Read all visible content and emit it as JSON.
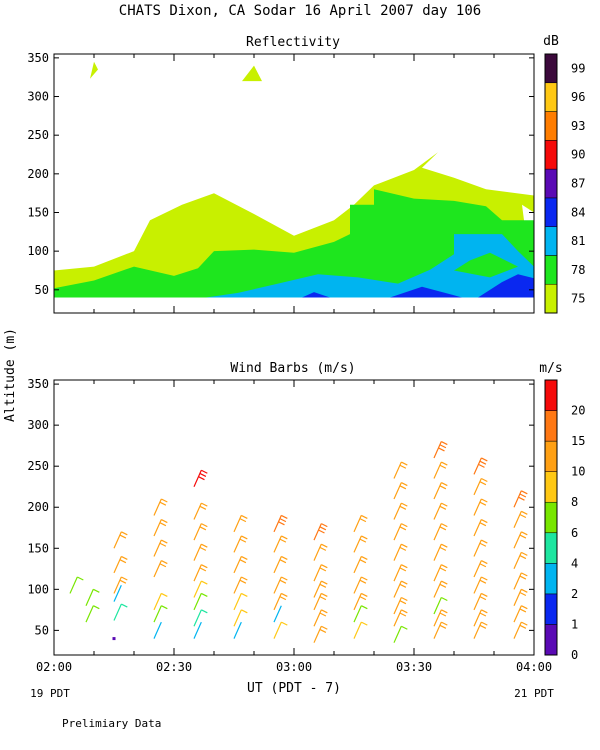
{
  "title": "CHATS Dixon, CA  Sodar  16 April 2007  day 106",
  "footer_note": "Prelimiary Data",
  "y_axis_label": "Altitude (m)",
  "x_axis_label": "UT  (PDT - 7)",
  "x_left_sub": "19 PDT",
  "x_right_sub": "21 PDT",
  "chart_data": [
    {
      "type": "heatmap",
      "title": "Reflectivity",
      "unit": "dB",
      "xlim": [
        0,
        120
      ],
      "ylim": [
        20,
        355
      ],
      "x_ticks": [
        {
          "value": 0,
          "label": "02:00"
        },
        {
          "value": 30,
          "label": "02:30"
        },
        {
          "value": 60,
          "label": "03:00"
        },
        {
          "value": 90,
          "label": "03:30"
        },
        {
          "value": 120,
          "label": "04:00"
        }
      ],
      "y_ticks": [
        50,
        100,
        150,
        200,
        250,
        300,
        350
      ],
      "colorbar": [
        {
          "label": "75",
          "color": "#c8f000"
        },
        {
          "label": "78",
          "color": "#1ee61e"
        },
        {
          "label": "81",
          "color": "#00b4f0"
        },
        {
          "label": "84",
          "color": "#0a28f0"
        },
        {
          "label": "87",
          "color": "#5a0ab4"
        },
        {
          "label": "90",
          "color": "#f50a0a"
        },
        {
          "label": "93",
          "color": "#ff7d00"
        },
        {
          "label": "96",
          "color": "#ffc814"
        },
        {
          "label": "99",
          "color": "#3c0a3c"
        }
      ],
      "regions": [
        {
          "level": "75",
          "color": "#c8f000",
          "points": [
            [
              0,
              40
            ],
            [
              0,
              75
            ],
            [
              10,
              80
            ],
            [
              20,
              100
            ],
            [
              24,
              140
            ],
            [
              32,
              160
            ],
            [
              40,
              175
            ],
            [
              50,
              148
            ],
            [
              60,
              120
            ],
            [
              70,
              140
            ],
            [
              75,
              160
            ],
            [
              80,
              185
            ],
            [
              90,
              205
            ],
            [
              96,
              228
            ],
            [
              92,
              208
            ],
            [
              100,
              195
            ],
            [
              108,
              180
            ],
            [
              120,
              172
            ],
            [
              120,
              150
            ],
            [
              117,
              160
            ],
            [
              120,
              40
            ]
          ]
        },
        {
          "level": "78",
          "color": "#1ee61e",
          "points": [
            [
              0,
              40
            ],
            [
              0,
              52
            ],
            [
              10,
              62
            ],
            [
              20,
              80
            ],
            [
              30,
              68
            ],
            [
              36,
              78
            ],
            [
              40,
              100
            ],
            [
              50,
              102
            ],
            [
              60,
              98
            ],
            [
              70,
              112
            ],
            [
              74,
              122
            ],
            [
              74,
              160
            ],
            [
              80,
              160
            ],
            [
              80,
              180
            ],
            [
              90,
              168
            ],
            [
              100,
              165
            ],
            [
              108,
              158
            ],
            [
              112,
              140
            ],
            [
              120,
              140
            ],
            [
              120,
              40
            ]
          ]
        },
        {
          "level": "81",
          "color": "#00b4f0",
          "points": [
            [
              38,
              40
            ],
            [
              46,
              46
            ],
            [
              56,
              58
            ],
            [
              66,
              70
            ],
            [
              76,
              66
            ],
            [
              86,
              58
            ],
            [
              94,
              76
            ],
            [
              100,
              96
            ],
            [
              100,
              122
            ],
            [
              112,
              122
            ],
            [
              116,
              100
            ],
            [
              120,
              80
            ],
            [
              120,
              40
            ]
          ]
        },
        {
          "level": "78",
          "color": "#1ee61e",
          "points": [
            [
              100,
              75
            ],
            [
              104,
              88
            ],
            [
              109,
              98
            ],
            [
              116,
              80
            ],
            [
              109,
              66
            ]
          ]
        },
        {
          "level": "84",
          "color": "#0a28f0",
          "points": [
            [
              62,
              40
            ],
            [
              65,
              47
            ],
            [
              69,
              40
            ]
          ]
        },
        {
          "level": "84",
          "color": "#0a28f0",
          "points": [
            [
              84,
              40
            ],
            [
              92,
              54
            ],
            [
              100,
              43
            ],
            [
              102,
              40
            ]
          ]
        },
        {
          "level": "84",
          "color": "#0a28f0",
          "points": [
            [
              106,
              40
            ],
            [
              112,
              60
            ],
            [
              116,
              70
            ],
            [
              120,
              65
            ],
            [
              120,
              40
            ]
          ]
        },
        {
          "level": "75",
          "color": "#c8f000",
          "points": [
            [
              9,
              323
            ],
            [
              10,
              345
            ],
            [
              11,
              335
            ]
          ]
        },
        {
          "level": "75",
          "color": "#c8f000",
          "points": [
            [
              47,
              320
            ],
            [
              50,
              340
            ],
            [
              52,
              320
            ]
          ]
        }
      ]
    },
    {
      "type": "scatter",
      "title": "Wind Barbs (m/s)",
      "unit": "m/s",
      "xlim": [
        0,
        120
      ],
      "ylim": [
        20,
        355
      ],
      "x_ticks": [
        {
          "value": 0,
          "label": "02:00"
        },
        {
          "value": 30,
          "label": "02:30"
        },
        {
          "value": 60,
          "label": "03:00"
        },
        {
          "value": 90,
          "label": "03:30"
        },
        {
          "value": 120,
          "label": "04:00"
        }
      ],
      "y_ticks": [
        50,
        100,
        150,
        200,
        250,
        300,
        350
      ],
      "colorbar": [
        {
          "label": "0",
          "color": "#5a0ab4"
        },
        {
          "label": "1",
          "color": "#0a28f0"
        },
        {
          "label": "2",
          "color": "#00b4f0"
        },
        {
          "label": "4",
          "color": "#1ee6a0"
        },
        {
          "label": "6",
          "color": "#78e600"
        },
        {
          "label": "8",
          "color": "#ffc814"
        },
        {
          "label": "10",
          "color": "#ffa014"
        },
        {
          "label": "15",
          "color": "#ff7814"
        },
        {
          "label": "20",
          "color": "#f50a0a"
        }
      ],
      "barb_columns": [
        {
          "x": 4,
          "barbs": [
            [
              95,
              6
            ]
          ]
        },
        {
          "x": 8,
          "barbs": [
            [
              80,
              6
            ],
            [
              60,
              6
            ]
          ]
        },
        {
          "x": 15,
          "barbs": [
            [
              150,
              10
            ],
            [
              120,
              10
            ],
            [
              95,
              10
            ],
            [
              85,
              2
            ],
            [
              62,
              4
            ],
            [
              40,
              0
            ]
          ]
        },
        {
          "x": 25,
          "barbs": [
            [
              190,
              10
            ],
            [
              165,
              10
            ],
            [
              140,
              10
            ],
            [
              115,
              10
            ],
            [
              75,
              8
            ],
            [
              60,
              6
            ],
            [
              40,
              2
            ]
          ]
        },
        {
          "x": 35,
          "barbs": [
            [
              225,
              20
            ],
            [
              185,
              10
            ],
            [
              160,
              10
            ],
            [
              135,
              10
            ],
            [
              110,
              10
            ],
            [
              90,
              8
            ],
            [
              75,
              6
            ],
            [
              55,
              4
            ],
            [
              40,
              2
            ]
          ]
        },
        {
          "x": 45,
          "barbs": [
            [
              170,
              10
            ],
            [
              145,
              10
            ],
            [
              120,
              10
            ],
            [
              95,
              10
            ],
            [
              75,
              8
            ],
            [
              55,
              8
            ],
            [
              40,
              2
            ]
          ]
        },
        {
          "x": 55,
          "barbs": [
            [
              170,
              15
            ],
            [
              145,
              10
            ],
            [
              120,
              10
            ],
            [
              95,
              10
            ],
            [
              75,
              10
            ],
            [
              60,
              2
            ],
            [
              40,
              8
            ]
          ]
        },
        {
          "x": 65,
          "barbs": [
            [
              160,
              15
            ],
            [
              135,
              10
            ],
            [
              110,
              10
            ],
            [
              90,
              10
            ],
            [
              75,
              10
            ],
            [
              55,
              10
            ],
            [
              35,
              10
            ]
          ]
        },
        {
          "x": 75,
          "barbs": [
            [
              170,
              10
            ],
            [
              145,
              10
            ],
            [
              120,
              10
            ],
            [
              95,
              10
            ],
            [
              75,
              10
            ],
            [
              60,
              6
            ],
            [
              40,
              8
            ]
          ]
        },
        {
          "x": 85,
          "barbs": [
            [
              235,
              10
            ],
            [
              210,
              10
            ],
            [
              185,
              10
            ],
            [
              160,
              10
            ],
            [
              135,
              10
            ],
            [
              110,
              10
            ],
            [
              90,
              10
            ],
            [
              70,
              10
            ],
            [
              55,
              10
            ],
            [
              35,
              6
            ]
          ]
        },
        {
          "x": 95,
          "barbs": [
            [
              260,
              15
            ],
            [
              235,
              10
            ],
            [
              210,
              10
            ],
            [
              185,
              10
            ],
            [
              160,
              10
            ],
            [
              135,
              10
            ],
            [
              110,
              10
            ],
            [
              90,
              10
            ],
            [
              70,
              6
            ],
            [
              55,
              10
            ],
            [
              40,
              10
            ]
          ]
        },
        {
          "x": 105,
          "barbs": [
            [
              240,
              15
            ],
            [
              215,
              10
            ],
            [
              190,
              10
            ],
            [
              165,
              10
            ],
            [
              140,
              10
            ],
            [
              115,
              10
            ],
            [
              95,
              10
            ],
            [
              75,
              10
            ],
            [
              55,
              10
            ],
            [
              40,
              10
            ]
          ]
        },
        {
          "x": 115,
          "barbs": [
            [
              200,
              15
            ],
            [
              175,
              10
            ],
            [
              150,
              10
            ],
            [
              125,
              10
            ],
            [
              100,
              10
            ],
            [
              80,
              10
            ],
            [
              60,
              10
            ],
            [
              40,
              10
            ]
          ]
        }
      ]
    }
  ]
}
